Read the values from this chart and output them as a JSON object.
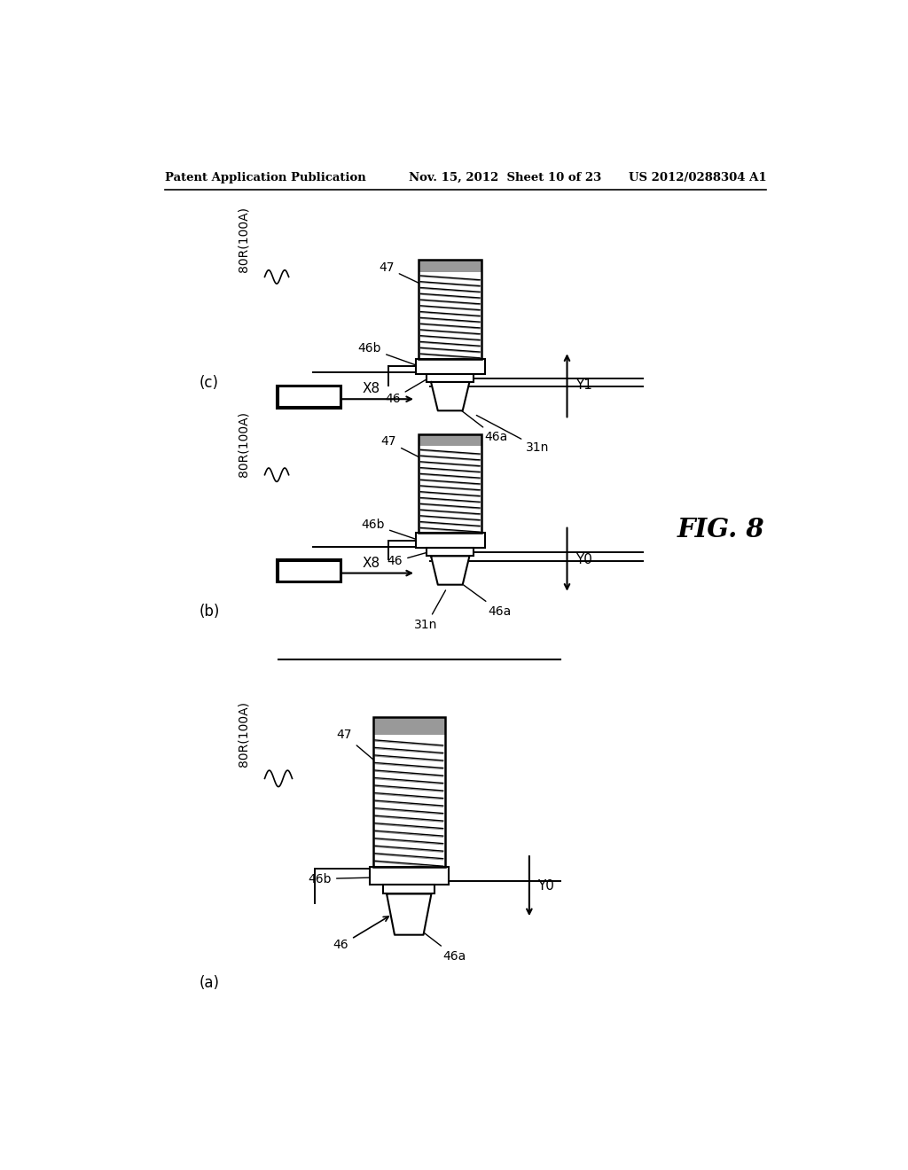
{
  "bg_color": "#ffffff",
  "header_left": "Patent Application Publication",
  "header_mid": "Nov. 15, 2012  Sheet 10 of 23",
  "header_right": "US 2012/0288304 A1",
  "fig_label": "FIG. 8",
  "panel_a_label": "(a)",
  "panel_b_label": "(b)",
  "panel_c_label": "(c)",
  "coil_line_color": "#555555",
  "coil_fill_color": "#dddddd"
}
